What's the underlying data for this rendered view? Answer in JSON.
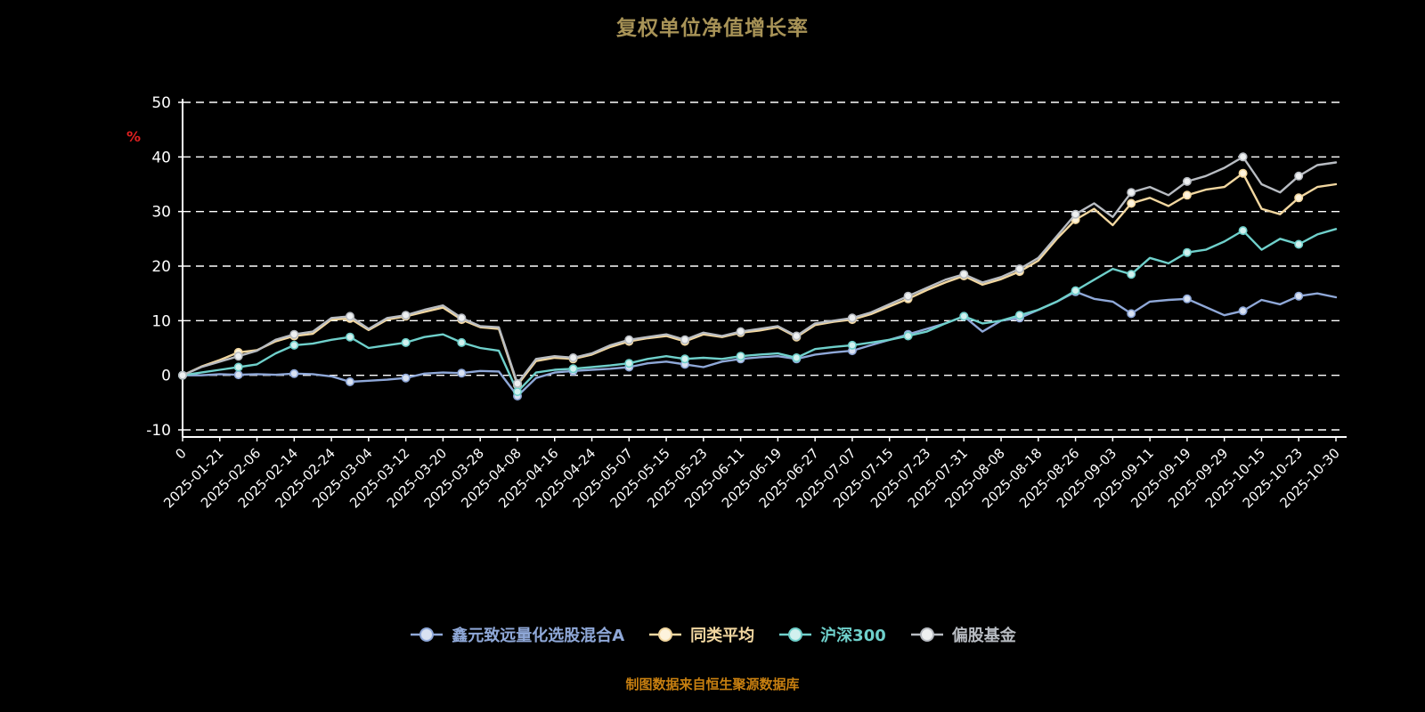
{
  "title": "复权单位净值增长率",
  "footer": "制图数据来自恒生聚源数据库",
  "colors": {
    "background": "#000000",
    "title": "#a89357",
    "footer": "#c77f10",
    "axis": "#ffffff",
    "grid": "#ffffff",
    "tick_label": "#ffffff",
    "unit_label": "#e02020"
  },
  "chart_data": {
    "type": "line",
    "title": "复权单位净值增长率",
    "xlabel": "",
    "ylabel": "%",
    "ylim": [
      -10,
      50
    ],
    "yticks": [
      50,
      40,
      30,
      20,
      10,
      0,
      -10
    ],
    "grid": "horizontal-dashed",
    "legend_position": "bottom",
    "x_label_rotation": -45,
    "marker_every": 3,
    "x_tick_labels": [
      "0",
      "2025-01-21",
      "2025-02-06",
      "2025-02-14",
      "2025-02-24",
      "2025-03-04",
      "2025-03-12",
      "2025-03-20",
      "2025-03-28",
      "2025-04-08",
      "2025-04-16",
      "2025-04-24",
      "2025-05-07",
      "2025-05-15",
      "2025-05-23",
      "2025-06-11",
      "2025-06-19",
      "2025-06-27",
      "2025-07-07",
      "2025-07-15",
      "2025-07-23",
      "2025-07-31",
      "2025-08-08",
      "2025-08-18",
      "2025-08-26",
      "2025-09-03",
      "2025-09-11",
      "2025-09-19",
      "2025-09-29",
      "2025-10-15",
      "2025-10-23",
      "2025-10-30"
    ],
    "series": [
      {
        "name": "鑫元致远量化选股混合A",
        "color": "#8fa8d8",
        "marker_fill": "#d9e2f2",
        "values": [
          0,
          0,
          0.2,
          0.1,
          0.2,
          0.1,
          0.3,
          0.2,
          -0.2,
          -1.2,
          -1.0,
          -0.8,
          -0.5,
          0.3,
          0.5,
          0.4,
          0.8,
          0.7,
          -3.8,
          -0.5,
          0.5,
          0.8,
          1.0,
          1.2,
          1.5,
          2.2,
          2.5,
          2.0,
          1.5,
          2.5,
          3.0,
          3.3,
          3.5,
          3.0,
          3.8,
          4.2,
          4.5,
          5.5,
          6.5,
          7.5,
          8.5,
          9.5,
          10.8,
          8.0,
          10.0,
          10.5,
          12.0,
          13.5,
          15.3,
          14.0,
          13.5,
          11.3,
          13.5,
          13.8,
          14.0,
          12.5,
          11.0,
          11.8,
          13.8,
          13.0,
          14.5,
          15.0,
          14.3
        ]
      },
      {
        "name": "同类平均",
        "color": "#f2d7a0",
        "marker_fill": "#fdf3dc",
        "values": [
          0,
          1.6,
          2.8,
          4.2,
          4.6,
          6.2,
          7.2,
          7.6,
          10.2,
          10.4,
          8.3,
          10.2,
          10.8,
          11.6,
          12.4,
          10.2,
          8.8,
          8.5,
          -1.8,
          2.6,
          3.2,
          3.0,
          3.8,
          5.2,
          6.2,
          6.8,
          7.2,
          6.2,
          7.5,
          7.0,
          7.8,
          8.2,
          8.8,
          7.0,
          9.2,
          9.8,
          10.2,
          11.2,
          12.6,
          14.0,
          15.6,
          17.0,
          18.2,
          16.6,
          17.6,
          19.0,
          21.0,
          25.0,
          28.5,
          30.5,
          27.5,
          31.5,
          32.5,
          31.0,
          33.0,
          34.0,
          34.5,
          37.0,
          30.5,
          29.5,
          32.5,
          34.5,
          35.0
        ]
      },
      {
        "name": "沪深300",
        "color": "#6fd0cb",
        "marker_fill": "#d2f1ef",
        "values": [
          0,
          0.5,
          1.0,
          1.5,
          2.0,
          4.0,
          5.5,
          5.8,
          6.5,
          7.0,
          5.0,
          5.5,
          6.0,
          7.0,
          7.5,
          6.0,
          5.0,
          4.5,
          -3.0,
          0.5,
          1.0,
          1.2,
          1.5,
          1.8,
          2.2,
          3.0,
          3.5,
          3.0,
          3.2,
          3.0,
          3.5,
          3.8,
          4.0,
          3.2,
          4.8,
          5.2,
          5.5,
          6.0,
          6.5,
          7.2,
          8.0,
          9.5,
          10.8,
          9.5,
          10.0,
          11.0,
          12.0,
          13.5,
          15.5,
          17.5,
          19.5,
          18.5,
          21.5,
          20.5,
          22.5,
          23.0,
          24.5,
          26.5,
          23.0,
          25.0,
          24.0,
          25.8,
          26.8
        ]
      },
      {
        "name": "偏股基金",
        "color": "#b8bcc2",
        "marker_fill": "#eef0f1",
        "values": [
          0,
          1.5,
          2.5,
          3.5,
          4.5,
          6.5,
          7.5,
          8.0,
          10.5,
          10.8,
          8.5,
          10.5,
          11.0,
          12.0,
          12.8,
          10.5,
          9.0,
          8.8,
          -1.5,
          3.0,
          3.5,
          3.2,
          4.0,
          5.5,
          6.5,
          7.0,
          7.5,
          6.5,
          7.8,
          7.2,
          8.0,
          8.5,
          9.0,
          7.2,
          9.5,
          10.0,
          10.5,
          11.5,
          13.0,
          14.5,
          16.0,
          17.5,
          18.5,
          17.0,
          18.0,
          19.5,
          21.5,
          25.5,
          29.5,
          31.5,
          29.0,
          33.5,
          34.5,
          33.0,
          35.5,
          36.5,
          38.0,
          40.0,
          35.0,
          33.5,
          36.5,
          38.5,
          39.0
        ]
      }
    ]
  }
}
